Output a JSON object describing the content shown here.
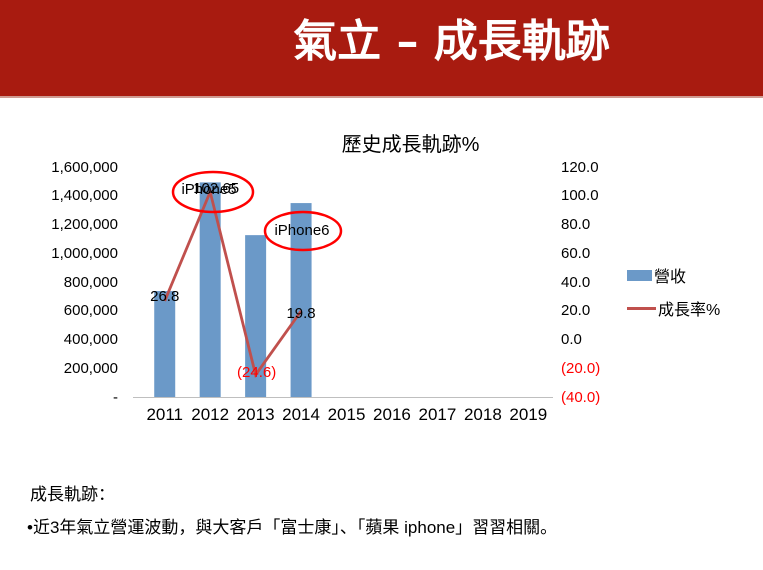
{
  "slide": {
    "title": "氣立 – 成長軌跡"
  },
  "colors": {
    "header_red": "#a81b10",
    "bar_blue": "#6b99c8",
    "line_red": "#c0504d",
    "ellipse_red": "#ff0000",
    "negative_red": "#ff0000",
    "axis_gray": "#bfbfbf"
  },
  "chart_data": {
    "type": "bar",
    "subtype": "bar+line combo, dual axis",
    "title": "歷史成長軌跡%",
    "categories": [
      "2011",
      "2012",
      "2013",
      "2014",
      "2015",
      "2016",
      "2017",
      "2018",
      "2019"
    ],
    "series": [
      {
        "name": "營收",
        "type": "bar",
        "axis": "left",
        "color": "#6b99c8",
        "values": [
          737000,
          1493000,
          1126000,
          1349000,
          null,
          null,
          null,
          null,
          null
        ]
      },
      {
        "name": "成長率%",
        "type": "line",
        "axis": "right",
        "color": "#c0504d",
        "values": [
          26.8,
          102.65,
          -24.6,
          19.8,
          null,
          null,
          null,
          null,
          null
        ],
        "point_labels": [
          "26.8",
          "102.65",
          "(24.6)",
          "19.8"
        ]
      }
    ],
    "left_axis": {
      "min": 0,
      "max": 1600000,
      "ticks": [
        "1,600,000",
        "1,400,000",
        "1,200,000",
        "1,000,000",
        "800,000",
        "600,000",
        "400,000",
        "200,000",
        "-"
      ]
    },
    "right_axis": {
      "min": -40,
      "max": 120,
      "ticks": [
        "120.0",
        "100.0",
        "80.0",
        "60.0",
        "40.0",
        "20.0",
        "0.0",
        "(20.0)",
        "(40.0)"
      ],
      "negative_color": "#ff0000"
    },
    "annotations": [
      {
        "text": "iPhone5",
        "category": "2012",
        "circled": true
      },
      {
        "text": "iPhone6",
        "category": "2014",
        "circled": true
      }
    ],
    "legend_position": "right",
    "grid": "off"
  },
  "footer": {
    "heading": "成長軌跡：",
    "bullet": "•近3年氣立營運波動，與大客戶「富士康」、「蘋果 iphone」習習相關。"
  }
}
